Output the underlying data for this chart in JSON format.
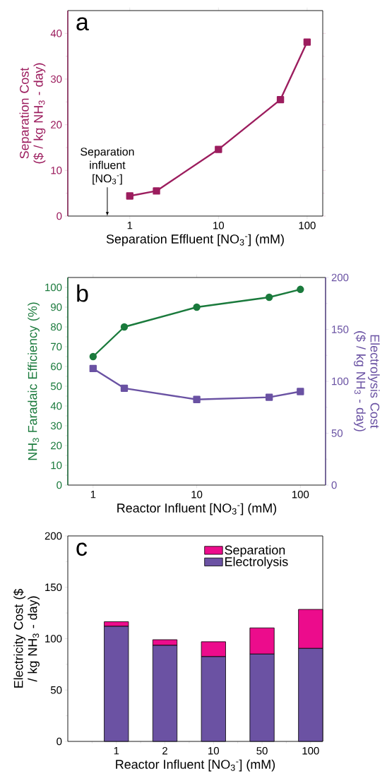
{
  "chart_data": [
    {
      "type": "line",
      "title": "a",
      "xlabel": "Separation Effluent [NO$_{3}$$^{-}$] (mM)",
      "ylabel": "Separation Cost ($ / kg NH$_{3}$ - day)",
      "log": "x",
      "x": [
        1,
        2,
        10,
        50,
        100
      ],
      "series": [
        {
          "color": "#9c1d5e",
          "values": [
            4.4,
            5.5,
            14.6,
            25.5,
            38.1
          ]
        }
      ],
      "xlim": [
        0.2,
        150
      ],
      "ylim": [
        0,
        45
      ],
      "xticks": [
        1,
        10,
        100
      ],
      "yticks": [
        0,
        10,
        20,
        30,
        40
      ],
      "annotations": [
        "Separation influent [NO$_{3}$$^{-}$]"
      ],
      "marker": "square",
      "grid": false
    },
    {
      "type": "line",
      "title": "b",
      "xlabel": "Reactor Influent [NO$_{3}$$^{-}$] (mM)",
      "ylabel": "NH$_{3}$ Faradaic Efficiency (%)",
      "y2label": "Electrolysis Cost ($ / kg NH$_{3}$ - day)",
      "log": "x",
      "x": [
        1,
        2,
        10,
        50,
        100
      ],
      "series": [
        {
          "color": "#1a7a3c",
          "values": [
            65,
            80,
            90,
            95,
            99
          ],
          "marker": "circle"
        },
        {
          "color": "#6a52a3",
          "values": [
            112.3,
            93.3,
            82.5,
            84.6,
            90.1
          ],
          "marker": "square",
          "axis": "y2"
        }
      ],
      "xlim": [
        0.57,
        175
      ],
      "ylim": [
        0,
        105
      ],
      "y2lim": [
        0,
        200
      ],
      "xticks": [
        1,
        10,
        100
      ],
      "yticks": [
        0,
        10,
        20,
        30,
        40,
        50,
        60,
        70,
        80,
        90,
        100
      ],
      "y2ticks": [
        0,
        50,
        100,
        150,
        200
      ],
      "grid": false
    },
    {
      "type": "bar",
      "title": "c",
      "xlabel": "Reactor Influent [NO$_{3}$$^{-}$] (mM)",
      "ylabel": "Electricity Cost ($ / kg NH$_{3}$ - day)",
      "categories": [
        "1",
        "2",
        "10",
        "50",
        "100"
      ],
      "stacked": true,
      "series": [
        {
          "name": "Electrolysis",
          "color": "#6b52a3",
          "values": [
            112,
            93.5,
            82.5,
            85,
            90.5
          ]
        },
        {
          "name": "Separation",
          "color": "#ec0c8c",
          "values": [
            4.5,
            5.5,
            14.5,
            25.5,
            38
          ]
        }
      ],
      "ylim": [
        0,
        200
      ],
      "yticks": [
        0,
        50,
        100,
        150,
        200
      ],
      "grid": false,
      "legend": "top right"
    }
  ]
}
